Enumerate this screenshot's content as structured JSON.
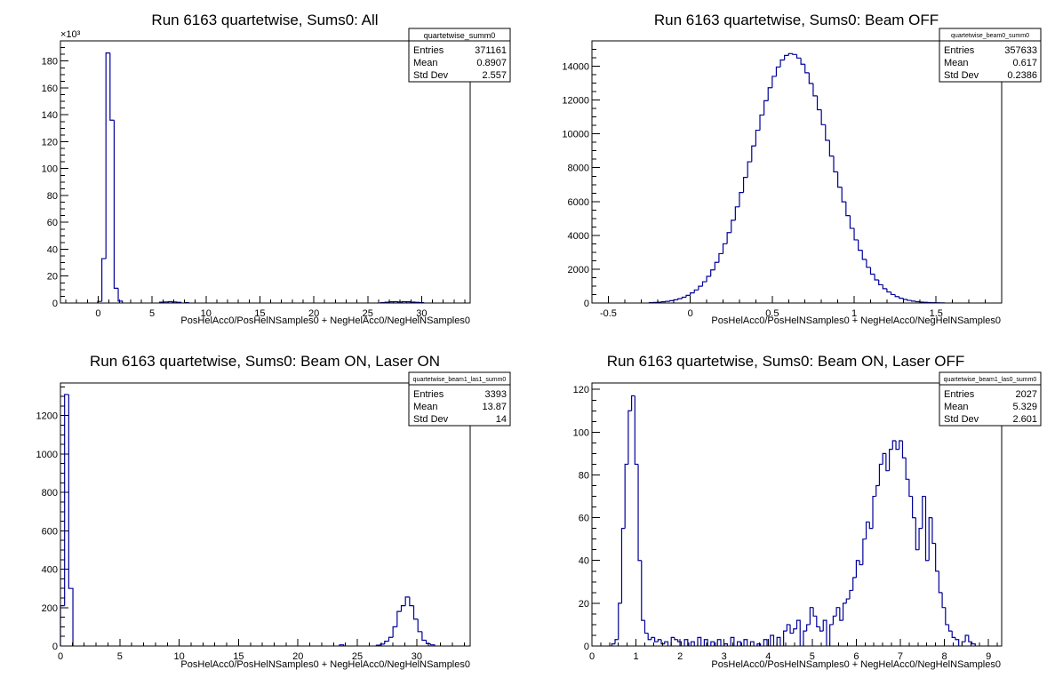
{
  "chart_data": [
    {
      "type": "bar",
      "title": "Run 6163 quartetwise, Sums0: All",
      "xlabel": "PosHelAcc0/PosHelNSamples0 + NegHelAcc0/NegHelNSamples0",
      "ylabel": "",
      "y_multiplier": "×10³",
      "xlim": [
        -3.5,
        34.5
      ],
      "ylim": [
        0,
        195
      ],
      "xticks": [
        0,
        5,
        10,
        15,
        20,
        25,
        30
      ],
      "yticks": [
        0,
        20,
        40,
        60,
        80,
        100,
        120,
        140,
        160,
        180
      ],
      "bin_width": 0.38,
      "bins": [
        [
          -0.04,
          1.2
        ],
        [
          0.34,
          33
        ],
        [
          0.72,
          186
        ],
        [
          1.1,
          136
        ],
        [
          1.48,
          11
        ],
        [
          1.86,
          1.4
        ],
        [
          5.7,
          0.6
        ],
        [
          6.1,
          0.8
        ],
        [
          6.5,
          1.0
        ],
        [
          6.9,
          0.8
        ],
        [
          7.3,
          0.5
        ],
        [
          8.0,
          0.3
        ],
        [
          26.2,
          0.3
        ],
        [
          26.6,
          0.6
        ],
        [
          27.0,
          0.9
        ],
        [
          27.4,
          1.0
        ],
        [
          27.8,
          0.8
        ],
        [
          28.2,
          1.0
        ],
        [
          28.6,
          0.9
        ],
        [
          29.0,
          0.7
        ],
        [
          29.4,
          0.5
        ],
        [
          29.8,
          0.3
        ]
      ],
      "stats": {
        "name": "quartetwise_summ0",
        "entries_label": "Entries",
        "entries": "371161",
        "mean_label": "Mean",
        "mean": "0.8907",
        "std_label": "Std Dev",
        "std": "2.557"
      }
    },
    {
      "type": "bar",
      "title": "Run 6163 quartetwise, Sums0: Beam OFF",
      "xlabel": "PosHelAcc0/PosHelNSamples0 + NegHelAcc0/NegHelNSamples0",
      "ylabel": "",
      "xlim": [
        -0.6,
        1.9
      ],
      "ylim": [
        0,
        15500
      ],
      "xticks": [
        -0.5,
        0,
        0.5,
        1,
        1.5
      ],
      "yticks": [
        0,
        2000,
        4000,
        6000,
        8000,
        10000,
        12000,
        14000
      ],
      "gauss": {
        "mean": 0.617,
        "sigma": 0.2386,
        "peak": 14750,
        "bin_width": 0.025,
        "from": -0.25,
        "to": 1.55
      }
    },
    {
      "type": "bar",
      "title": "Run 6163 quartetwise, Sums0: Beam ON, Laser ON",
      "xlabel": "PosHelAcc0/PosHelNSamples0 + NegHelAcc0/NegHelNSamples0",
      "ylabel": "",
      "xlim": [
        0,
        34.5
      ],
      "ylim": [
        0,
        1370
      ],
      "xticks": [
        0,
        5,
        10,
        15,
        20,
        25,
        30
      ],
      "yticks": [
        0,
        200,
        400,
        600,
        800,
        1000,
        1200
      ],
      "bin_width": 0.35,
      "bins": [
        [
          0.0,
          210
        ],
        [
          0.35,
          1310
        ],
        [
          0.7,
          300
        ],
        [
          23.5,
          6
        ],
        [
          26.6,
          4
        ],
        [
          26.95,
          10
        ],
        [
          27.3,
          25
        ],
        [
          27.65,
          45
        ],
        [
          28.0,
          100
        ],
        [
          28.35,
          180
        ],
        [
          28.7,
          210
        ],
        [
          29.05,
          255
        ],
        [
          29.4,
          210
        ],
        [
          29.75,
          140
        ],
        [
          30.1,
          75
        ],
        [
          30.45,
          30
        ],
        [
          30.8,
          12
        ],
        [
          31.15,
          6
        ]
      ],
      "stats": {
        "name": "quartetwise_beam1_las1_summ0",
        "entries_label": "Entries",
        "entries": "3393",
        "mean_label": "Mean",
        "mean": "13.87",
        "std_label": "Std Dev",
        "std": "14"
      }
    },
    {
      "type": "bar",
      "title": "Run 6163 quartetwise, Sums0: Beam ON, Laser OFF",
      "xlabel": "PosHelAcc0/PosHelNSamples0 + NegHelAcc0/NegHelNSamples0",
      "ylabel": "",
      "xlim": [
        0,
        9.3
      ],
      "ylim": [
        0,
        123
      ],
      "xticks": [
        0,
        1,
        2,
        3,
        4,
        5,
        6,
        7,
        8,
        9
      ],
      "yticks": [
        0,
        20,
        40,
        60,
        80,
        100,
        120
      ],
      "bin_width": 0.075,
      "bins": [
        [
          0.45,
          1
        ],
        [
          0.525,
          3
        ],
        [
          0.6,
          20
        ],
        [
          0.675,
          55
        ],
        [
          0.75,
          85
        ],
        [
          0.825,
          110
        ],
        [
          0.9,
          117
        ],
        [
          0.975,
          85
        ],
        [
          1.05,
          40
        ],
        [
          1.125,
          12
        ],
        [
          1.2,
          6
        ],
        [
          1.275,
          3
        ],
        [
          1.35,
          4
        ],
        [
          1.425,
          2
        ],
        [
          1.5,
          3
        ],
        [
          1.575,
          1
        ],
        [
          1.65,
          2
        ],
        [
          1.8,
          4
        ],
        [
          1.875,
          3
        ],
        [
          1.95,
          2
        ],
        [
          2.1,
          3
        ],
        [
          2.25,
          2
        ],
        [
          2.4,
          4
        ],
        [
          2.55,
          3
        ],
        [
          2.7,
          2
        ],
        [
          2.85,
          3
        ],
        [
          3.0,
          1
        ],
        [
          3.15,
          4
        ],
        [
          3.3,
          2
        ],
        [
          3.45,
          3
        ],
        [
          3.6,
          2
        ],
        [
          3.75,
          1
        ],
        [
          3.9,
          3
        ],
        [
          4.05,
          5
        ],
        [
          4.2,
          4
        ],
        [
          4.35,
          7
        ],
        [
          4.425,
          10
        ],
        [
          4.5,
          6
        ],
        [
          4.575,
          8
        ],
        [
          4.65,
          12
        ],
        [
          4.8,
          7
        ],
        [
          4.875,
          10
        ],
        [
          4.95,
          18
        ],
        [
          5.025,
          14
        ],
        [
          5.1,
          9
        ],
        [
          5.175,
          7
        ],
        [
          5.25,
          12
        ],
        [
          5.4,
          10
        ],
        [
          5.475,
          14
        ],
        [
          5.55,
          18
        ],
        [
          5.625,
          12
        ],
        [
          5.7,
          20
        ],
        [
          5.775,
          22
        ],
        [
          5.85,
          26
        ],
        [
          5.925,
          32
        ],
        [
          6.0,
          40
        ],
        [
          6.075,
          38
        ],
        [
          6.15,
          50
        ],
        [
          6.225,
          58
        ],
        [
          6.3,
          55
        ],
        [
          6.375,
          70
        ],
        [
          6.45,
          75
        ],
        [
          6.525,
          85
        ],
        [
          6.6,
          90
        ],
        [
          6.675,
          82
        ],
        [
          6.75,
          92
        ],
        [
          6.825,
          96
        ],
        [
          6.9,
          92
        ],
        [
          6.975,
          96
        ],
        [
          7.05,
          88
        ],
        [
          7.125,
          78
        ],
        [
          7.2,
          70
        ],
        [
          7.275,
          60
        ],
        [
          7.35,
          45
        ],
        [
          7.425,
          55
        ],
        [
          7.5,
          70
        ],
        [
          7.575,
          40
        ],
        [
          7.65,
          60
        ],
        [
          7.725,
          48
        ],
        [
          7.8,
          35
        ],
        [
          7.875,
          25
        ],
        [
          7.95,
          18
        ],
        [
          8.025,
          10
        ],
        [
          8.1,
          7
        ],
        [
          8.175,
          4
        ],
        [
          8.25,
          3
        ],
        [
          8.4,
          2
        ],
        [
          8.475,
          5
        ],
        [
          8.55,
          2
        ],
        [
          8.625,
          1
        ]
      ],
      "stats": {
        "name": "quartetwise_beam1_las0_summ0",
        "entries_label": "Entries",
        "entries": "2027",
        "mean_label": "Mean",
        "mean": "5.329",
        "std_label": "Std Dev",
        "std": "2.601"
      }
    }
  ],
  "beam_off_stats": {
    "name": "quartetwise_beam0_summ0",
    "entries_label": "Entries",
    "entries": "357633",
    "mean_label": "Mean",
    "mean": "0.617",
    "std_label": "Std Dev",
    "std": "0.2386"
  }
}
